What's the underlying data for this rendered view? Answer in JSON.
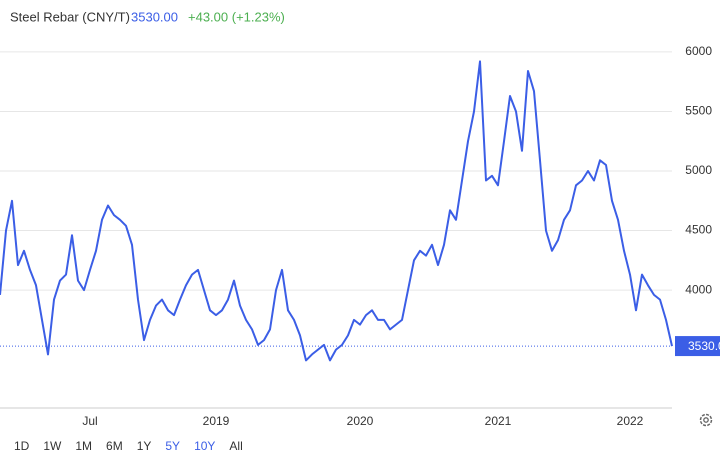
{
  "chart_data": {
    "type": "line",
    "title": "Steel Rebar (CNY/T)",
    "price": "3530.00",
    "change": "+43.00 (+1.23%)",
    "price_line": 3530,
    "color": "#3b5ee6",
    "grid": true,
    "ylim": [
      3010,
      6100
    ],
    "yticks": [
      4000,
      4500,
      5000,
      5500,
      6000
    ],
    "categories": [
      null,
      null,
      null,
      null,
      null,
      null,
      null,
      null,
      null,
      null,
      null,
      null,
      null,
      null,
      null,
      "Jul",
      null,
      null,
      null,
      null,
      null,
      null,
      null,
      null,
      null,
      null,
      null,
      null,
      null,
      null,
      null,
      null,
      null,
      null,
      null,
      null,
      "2019",
      null,
      null,
      null,
      null,
      null,
      null,
      null,
      null,
      null,
      null,
      null,
      null,
      null,
      null,
      null,
      null,
      null,
      null,
      null,
      null,
      null,
      null,
      null,
      "2020",
      null,
      null,
      null,
      null,
      null,
      null,
      null,
      null,
      null,
      null,
      null,
      null,
      null,
      null,
      null,
      null,
      null,
      null,
      null,
      null,
      null,
      null,
      "2021",
      null,
      null,
      null,
      null,
      null,
      null,
      null,
      null,
      null,
      null,
      null,
      null,
      null,
      null,
      null,
      null,
      null,
      null,
      null,
      null,
      null,
      "2022",
      null,
      null,
      null,
      null,
      null,
      null,
      null
    ],
    "values": [
      3960,
      4500,
      4750,
      4210,
      4330,
      4170,
      4040,
      3750,
      3460,
      3920,
      4080,
      4130,
      4460,
      4080,
      4000,
      4170,
      4330,
      4590,
      4710,
      4630,
      4590,
      4540,
      4380,
      3920,
      3580,
      3750,
      3870,
      3920,
      3830,
      3790,
      3920,
      4040,
      4130,
      4170,
      4000,
      3830,
      3790,
      3830,
      3920,
      4080,
      3870,
      3750,
      3670,
      3540,
      3580,
      3670,
      4000,
      4170,
      3830,
      3750,
      3620,
      3410,
      3460,
      3500,
      3540,
      3410,
      3500,
      3540,
      3620,
      3750,
      3710,
      3790,
      3830,
      3750,
      3750,
      3670,
      3710,
      3750,
      4000,
      4250,
      4330,
      4290,
      4380,
      4210,
      4380,
      4670,
      4590,
      4920,
      5250,
      5500,
      5920,
      4920,
      4960,
      4880,
      5250,
      5630,
      5500,
      5170,
      5840,
      5670,
      5090,
      4500,
      4330,
      4420,
      4590,
      4670,
      4880,
      4920,
      5000,
      4920,
      5090,
      5050,
      4750,
      4590,
      4330,
      4130,
      3830,
      4130,
      4040,
      3960,
      3920,
      3750,
      3530
    ],
    "buttons": [
      {
        "label": "1D",
        "active": false
      },
      {
        "label": "1W",
        "active": false
      },
      {
        "label": "1M",
        "active": false
      },
      {
        "label": "6M",
        "active": false
      },
      {
        "label": "1Y",
        "active": false
      },
      {
        "label": "5Y",
        "active": true
      },
      {
        "label": "10Y",
        "active": true
      },
      {
        "label": "All",
        "active": false
      }
    ]
  }
}
